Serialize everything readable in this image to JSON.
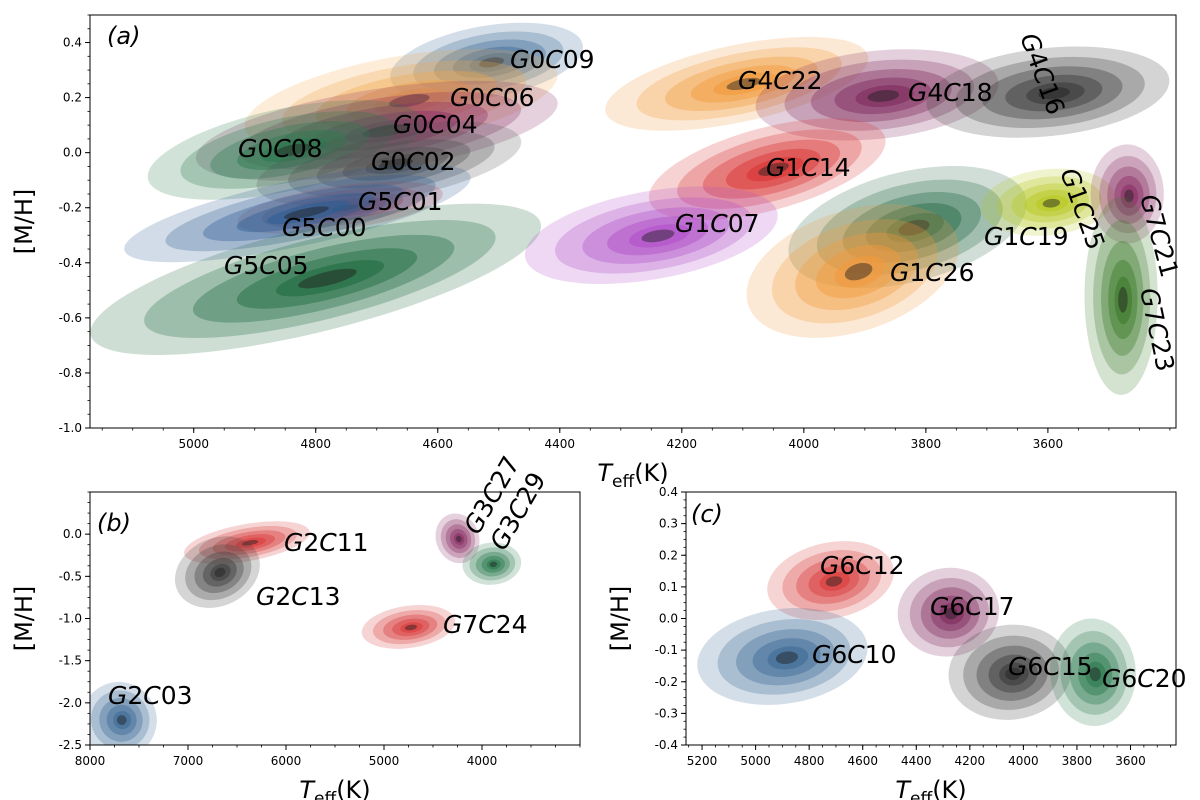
{
  "chart_data": [
    {
      "panel": "(a)",
      "type": "contour",
      "xlabel": "T_eff(K)",
      "ylabel": "[M/H]",
      "xlim": [
        5170,
        3390
      ],
      "ylim": [
        -1.0,
        0.5
      ],
      "x_ticks": [
        5000,
        4800,
        4600,
        4400,
        4200,
        4000,
        3800,
        3600
      ],
      "y_ticks": [
        -1.0,
        -0.8,
        -0.6,
        -0.4,
        -0.2,
        0.0,
        0.2,
        0.4
      ],
      "groups": [
        {
          "label": "G0C09",
          "color": "#3d6a96",
          "cx": 4520,
          "cy": 0.33,
          "rx": 160,
          "ry": 0.13,
          "rot": -10
        },
        {
          "label": "G0C06",
          "color": "#f0a84e",
          "cx": 4660,
          "cy": 0.19,
          "rx": 260,
          "ry": 0.16,
          "rot": -10
        },
        {
          "label": "G0C04",
          "color": "#8a2f66",
          "cx": 4700,
          "cy": 0.08,
          "rx": 300,
          "ry": 0.15,
          "rot": -9
        },
        {
          "label": "G0C08",
          "color": "#2c7a4f",
          "cx": 4850,
          "cy": 0.01,
          "rx": 230,
          "ry": 0.15,
          "rot": -12
        },
        {
          "label": "G0C02",
          "color": "#505050",
          "cx": 4680,
          "cy": -0.04,
          "rx": 220,
          "ry": 0.13,
          "rot": -10
        },
        {
          "label": "G5C01",
          "color": "#d93b3b",
          "cx": 4760,
          "cy": -0.2,
          "rx": 170,
          "ry": 0.08,
          "rot": -8
        },
        {
          "label": "G5C00",
          "color": "#2f5f95",
          "cx": 4830,
          "cy": -0.22,
          "rx": 290,
          "ry": 0.12,
          "rot": -12
        },
        {
          "label": "G5C05",
          "color": "#1f6a3f",
          "cx": 4800,
          "cy": -0.46,
          "rx": 380,
          "ry": 0.19,
          "rot": -14
        },
        {
          "label": "G4C22",
          "color": "#f29a3e",
          "cx": 4110,
          "cy": 0.25,
          "rx": 220,
          "ry": 0.14,
          "rot": -12
        },
        {
          "label": "G4C18",
          "color": "#7f2a5e",
          "cx": 3880,
          "cy": 0.21,
          "rx": 200,
          "ry": 0.16,
          "rot": -6
        },
        {
          "label": "G4C16",
          "color": "#3a3a3a",
          "cx": 3600,
          "cy": 0.22,
          "rx": 200,
          "ry": 0.16,
          "rot": -6
        },
        {
          "label": "G1C14",
          "color": "#d93333",
          "cx": 4060,
          "cy": -0.06,
          "rx": 200,
          "ry": 0.15,
          "rot": -15
        },
        {
          "label": "G1C07",
          "color": "#b04fc8",
          "cx": 4250,
          "cy": -0.3,
          "rx": 210,
          "ry": 0.16,
          "rot": -10
        },
        {
          "label": "G1C19",
          "color": "#276b48",
          "cx": 3830,
          "cy": -0.27,
          "rx": 200,
          "ry": 0.2,
          "rot": -14
        },
        {
          "label": "G1C25",
          "color": "#b7c820",
          "cx": 3600,
          "cy": -0.18,
          "rx": 110,
          "ry": 0.12,
          "rot": -6
        },
        {
          "label": "G1C26",
          "color": "#f29a3e",
          "cx": 3920,
          "cy": -0.43,
          "rx": 180,
          "ry": 0.22,
          "rot": -18
        },
        {
          "label": "G7C21",
          "color": "#8a2f66",
          "cx": 3470,
          "cy": -0.15,
          "rx": 60,
          "ry": 0.18,
          "rot": 0
        },
        {
          "label": "G7C23",
          "color": "#3c7a2a",
          "cx": 3480,
          "cy": -0.52,
          "rx": 60,
          "ry": 0.36,
          "rot": 0
        }
      ]
    },
    {
      "panel": "(b)",
      "type": "contour",
      "xlabel": "T_eff(K)",
      "ylabel": "[M/H]",
      "xlim": [
        8000,
        3000
      ],
      "ylim": [
        -2.5,
        0.5
      ],
      "x_ticks": [
        8000,
        7000,
        6000,
        5000,
        4000
      ],
      "y_ticks": [
        -2.5,
        -2.0,
        -1.5,
        -1.0,
        -0.5,
        0.0
      ],
      "groups": [
        {
          "label": "G2C11",
          "color": "#d93b3b",
          "cx": 6400,
          "cy": -0.1,
          "rx": 650,
          "ry": 0.22,
          "rot": -10
        },
        {
          "label": "G2C13",
          "color": "#404040",
          "cx": 6700,
          "cy": -0.45,
          "rx": 450,
          "ry": 0.4,
          "rot": -25
        },
        {
          "label": "G7C24",
          "color": "#d93b3b",
          "cx": 4750,
          "cy": -1.1,
          "rx": 480,
          "ry": 0.25,
          "rot": -8
        },
        {
          "label": "G3C27",
          "color": "#8a2f66",
          "cx": 4250,
          "cy": -0.05,
          "rx": 220,
          "ry": 0.3,
          "rot": -20
        },
        {
          "label": "G3C29",
          "color": "#2c7a4f",
          "cx": 3900,
          "cy": -0.35,
          "rx": 300,
          "ry": 0.25,
          "rot": -5
        },
        {
          "label": "G2C03",
          "color": "#3d6a96",
          "cx": 7700,
          "cy": -2.2,
          "rx": 380,
          "ry": 0.45,
          "rot": -30
        }
      ]
    },
    {
      "panel": "(c)",
      "type": "contour",
      "xlabel": "T_eff(K)",
      "ylabel": "[M/H]",
      "xlim": [
        5260,
        3430
      ],
      "ylim": [
        -0.4,
        0.4
      ],
      "x_ticks": [
        5200,
        5000,
        4800,
        4600,
        4400,
        4200,
        4000,
        3800,
        3600
      ],
      "y_ticks": [
        -0.4,
        -0.3,
        -0.2,
        -0.1,
        0.0,
        0.1,
        0.2,
        0.3,
        0.4
      ],
      "groups": [
        {
          "label": "G6C12",
          "color": "#d93b3b",
          "cx": 4720,
          "cy": 0.12,
          "rx": 240,
          "ry": 0.12,
          "rot": -12
        },
        {
          "label": "G6C17",
          "color": "#7f2a5e",
          "cx": 4280,
          "cy": 0.02,
          "rx": 190,
          "ry": 0.14,
          "rot": -8
        },
        {
          "label": "G6C10",
          "color": "#3d6a96",
          "cx": 4900,
          "cy": -0.12,
          "rx": 320,
          "ry": 0.15,
          "rot": -8
        },
        {
          "label": "G6C15",
          "color": "#3a3a3a",
          "cx": 4050,
          "cy": -0.17,
          "rx": 230,
          "ry": 0.15,
          "rot": -6
        },
        {
          "label": "G6C20",
          "color": "#2c7a4f",
          "cx": 3740,
          "cy": -0.17,
          "rx": 160,
          "ry": 0.17,
          "rot": -4
        }
      ]
    }
  ]
}
